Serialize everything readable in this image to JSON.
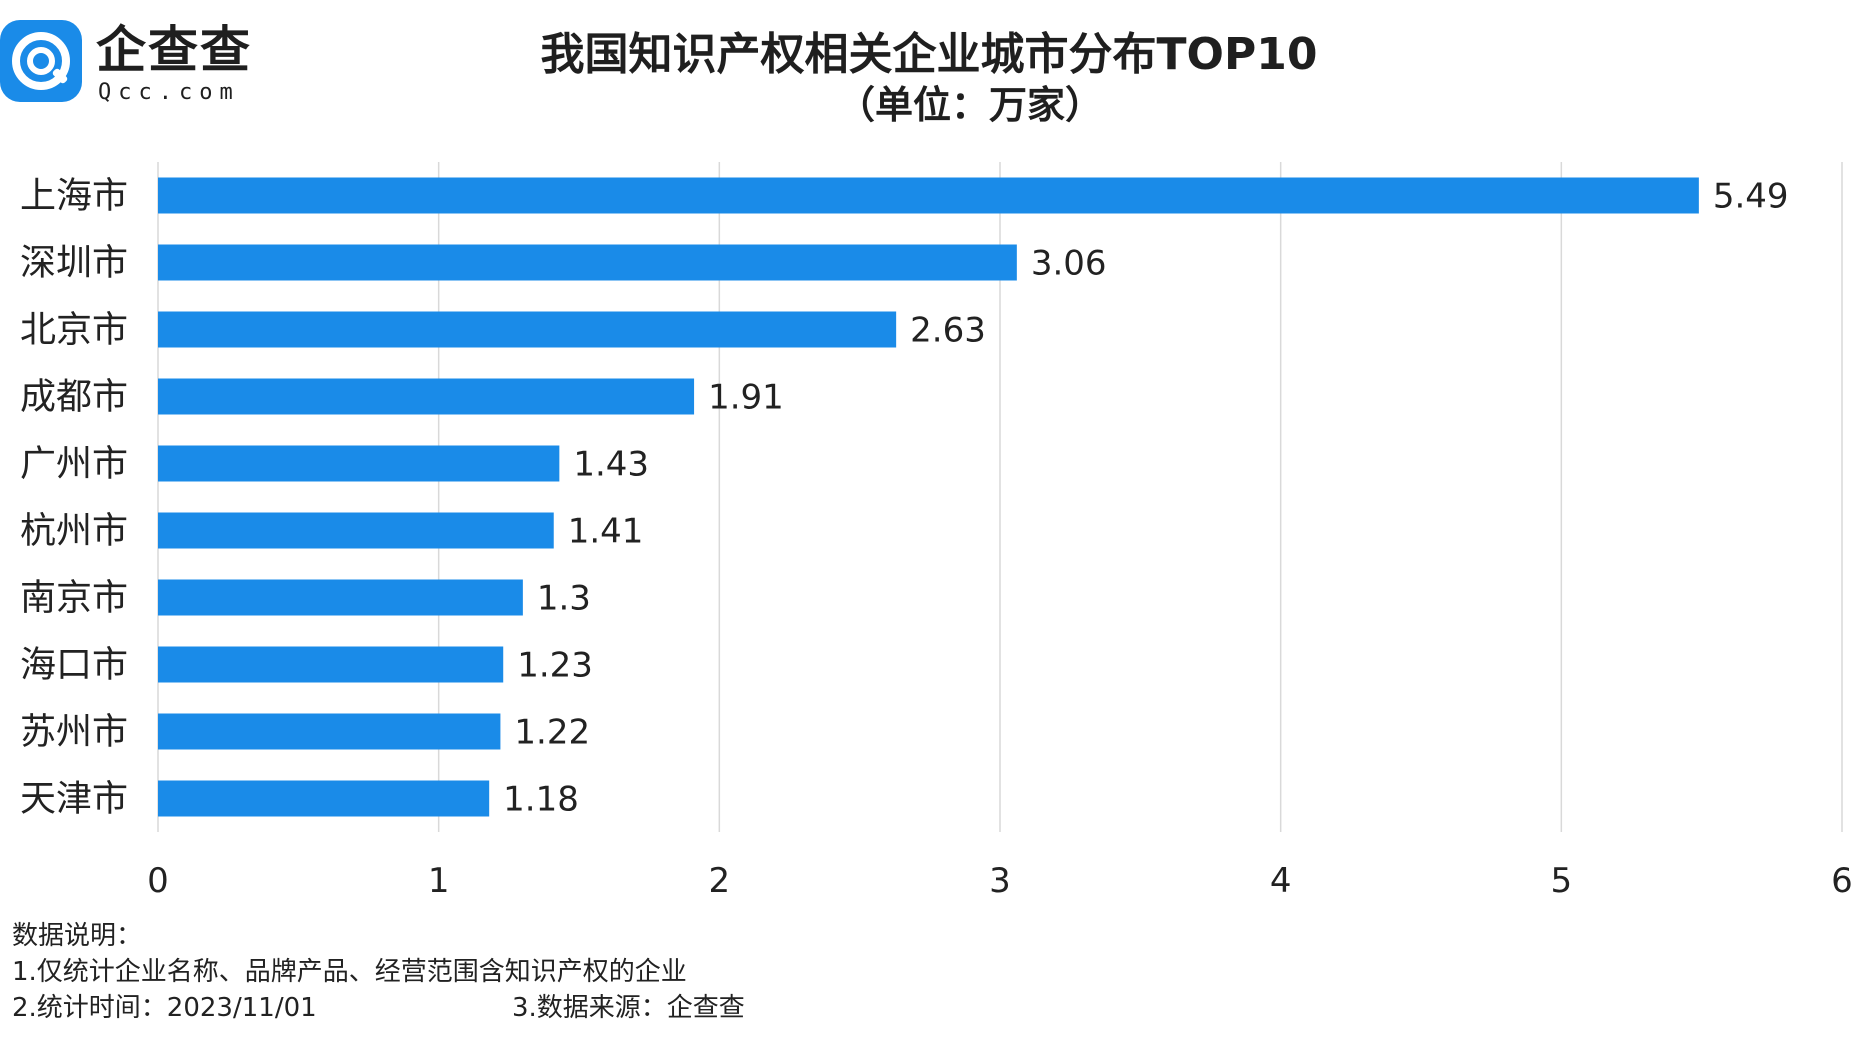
{
  "logo": {
    "name": "企查查",
    "domain": "Qcc.com"
  },
  "header": {
    "title": "我国知识产权相关企业城市分布TOP10",
    "subtitle": "（单位：万家）"
  },
  "chart_data": {
    "type": "bar",
    "orientation": "horizontal",
    "title": "我国知识产权相关企业城市分布TOP10",
    "subtitle": "（单位：万家）",
    "categories": [
      "上海市",
      "深圳市",
      "北京市",
      "成都市",
      "广州市",
      "杭州市",
      "南京市",
      "海口市",
      "苏州市",
      "天津市"
    ],
    "values": [
      5.49,
      3.06,
      2.63,
      1.91,
      1.43,
      1.41,
      1.3,
      1.23,
      1.22,
      1.18
    ],
    "value_labels": [
      "5.49",
      "3.06",
      "2.63",
      "1.91",
      "1.43",
      "1.41",
      "1.3",
      "1.23",
      "1.22",
      "1.18"
    ],
    "xlim": [
      0,
      6
    ],
    "x_ticks": [
      "0",
      "1",
      "2",
      "3",
      "4",
      "5",
      "6"
    ],
    "grid": true,
    "bar_color": "#1a8be8",
    "grid_color": "#d9d9d9"
  },
  "notes": {
    "heading": "数据说明：",
    "line1": "1.仅统计企业名称、品牌产品、经营范围含知识产权的企业",
    "line2": "2.统计时间：2023/11/01",
    "source": "3.数据来源：企查查"
  }
}
